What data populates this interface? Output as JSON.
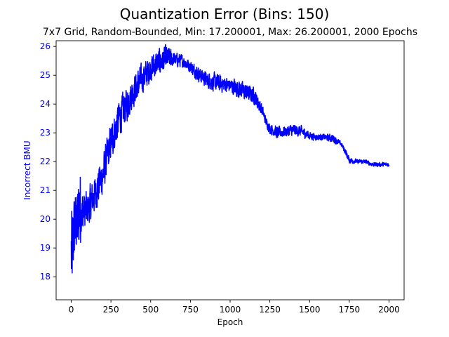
{
  "chart_data": {
    "type": "line",
    "title": "Quantization Error (Bins: 150)",
    "subtitle": "7x7 Grid, Random-Bounded, Min: 17.200001, Max: 26.200001, 2000 Epochs",
    "xlabel": "Epoch",
    "ylabel": "Incorrect BMU",
    "xlim": [
      -95,
      2095
    ],
    "ylim": [
      17.2,
      26.2
    ],
    "xticks": [
      0,
      250,
      500,
      750,
      1000,
      1250,
      1500,
      1750,
      2000
    ],
    "xtick_labels": [
      "0",
      "250",
      "500",
      "750",
      "1000",
      "1250",
      "1500",
      "1750",
      "2000"
    ],
    "yticks": [
      18,
      19,
      20,
      21,
      22,
      23,
      24,
      25,
      26
    ],
    "ytick_labels": [
      "18",
      "19",
      "20",
      "21",
      "22",
      "23",
      "24",
      "25",
      "26"
    ],
    "grid": false,
    "colors": {
      "series": "#0000ff",
      "ylabel": "#0000ff",
      "yticks": "#0000ff",
      "axis": "#000000"
    },
    "series": [
      {
        "values_description_free": true,
        "envelope": {
          "x": [
            0,
            10,
            20,
            35,
            50,
            75,
            100,
            150,
            200,
            250,
            300,
            350,
            400,
            450,
            500,
            550,
            600,
            650,
            700,
            750,
            800,
            850,
            900,
            950,
            1000,
            1050,
            1100,
            1150,
            1200,
            1225,
            1250,
            1300,
            1350,
            1400,
            1450,
            1500,
            1550,
            1600,
            1650,
            1700,
            1725,
            1750,
            1800,
            1850,
            1900,
            1950,
            2000
          ],
          "lo": [
            17.3,
            17.8,
            18.6,
            18.8,
            19.0,
            19.2,
            19.4,
            20.0,
            20.6,
            21.8,
            22.6,
            23.2,
            23.8,
            24.2,
            24.6,
            24.8,
            25.0,
            25.2,
            25.2,
            25.0,
            24.7,
            24.5,
            24.3,
            24.3,
            24.3,
            24.1,
            24.0,
            23.9,
            23.5,
            23.2,
            22.9,
            22.7,
            22.8,
            22.8,
            22.8,
            22.7,
            22.7,
            22.7,
            22.6,
            22.5,
            22.2,
            21.9,
            21.9,
            21.9,
            21.8,
            21.8,
            21.8
          ],
          "hi": [
            20.3,
            20.5,
            21.1,
            20.8,
            21.8,
            21.3,
            21.2,
            21.8,
            22.5,
            23.6,
            24.4,
            24.8,
            25.3,
            25.6,
            25.9,
            26.1,
            26.2,
            25.9,
            25.8,
            25.6,
            25.4,
            25.2,
            25.2,
            25.1,
            25.0,
            25.0,
            24.8,
            24.7,
            24.1,
            23.6,
            23.4,
            23.3,
            23.3,
            23.4,
            23.3,
            23.1,
            23.0,
            23.0,
            23.0,
            22.7,
            22.5,
            22.2,
            22.1,
            22.1,
            22.0,
            22.0,
            22.0
          ]
        }
      }
    ]
  }
}
